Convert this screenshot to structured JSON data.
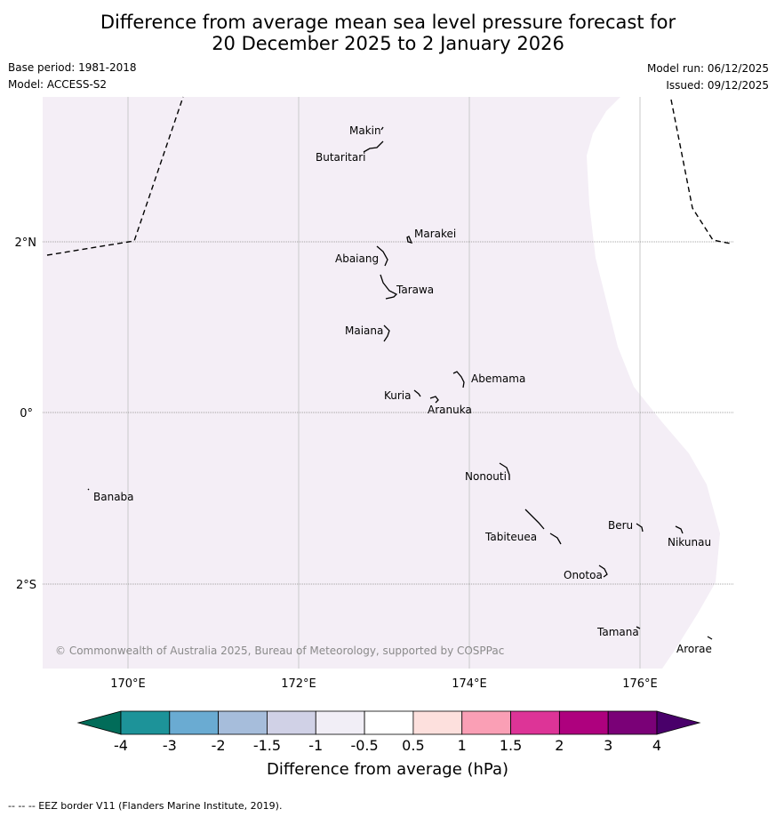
{
  "title_line1": "Difference from average mean sea level pressure forecast for",
  "title_line2": "20 December 2025 to 2 January 2026",
  "base_period": "Base period: 1981-2018",
  "model": "Model: ACCESS-S2",
  "model_run": "Model run: 06/12/2025",
  "issued": "Issued: 09/12/2025",
  "copyright": "© Commonwealth of Australia 2025, Bureau of Meteorology, supported by COSPPac",
  "lat_labels": [
    "2°N",
    "0°",
    "2°S"
  ],
  "lon_labels": [
    "170°E",
    "172°E",
    "174°E",
    "176°E"
  ],
  "places": [
    "Makin",
    "Butaritari",
    "Marakei",
    "Abaiang",
    "Tarawa",
    "Maiana",
    "Abemama",
    "Kuria",
    "Aranuka",
    "Nonouti",
    "Banaba",
    "Beru",
    "Nikunau",
    "Tabiteuea",
    "Onotoa",
    "Tamana",
    "Arorae"
  ],
  "colorbar": {
    "labels": [
      "-4",
      "-3",
      "-2",
      "-1.5",
      "-1",
      "-0.5",
      "0.5",
      "1",
      "1.5",
      "2",
      "3",
      "4"
    ],
    "colors": [
      "#1d9399",
      "#6aabd2",
      "#a6bddb",
      "#d0d1e6",
      "#f1eef6",
      "#ffffff",
      "#fde0dd",
      "#fa9fb5",
      "#dd3497",
      "#ae017e",
      "#7a0177"
    ],
    "low_extend": "#016c59",
    "high_extend": "#49006a",
    "title": "Difference from average (hPa)"
  },
  "fill_color": "#f4eef6",
  "footer": "--  --  -- EEZ border V11 (Flanders Marine Institute, 2019)."
}
